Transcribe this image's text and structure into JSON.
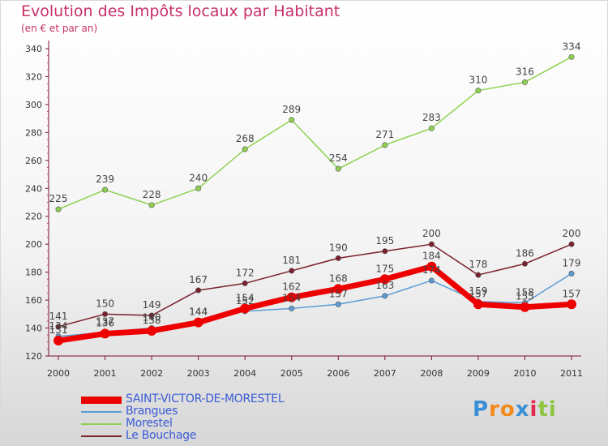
{
  "title": "Evolution des Impôts locaux par Habitant",
  "subtitle": "(en € et par an)",
  "chart_data": {
    "type": "line",
    "title": "Evolution des Impôts locaux par Habitant",
    "subtitle": "(en € et par an)",
    "xlabel": "",
    "ylabel": "",
    "x": [
      "2000",
      "2001",
      "2002",
      "2003",
      "2004",
      "2005",
      "2006",
      "2007",
      "2008",
      "2009",
      "2010",
      "2011"
    ],
    "ylim": [
      120,
      340
    ],
    "yticks": [
      120,
      140,
      160,
      180,
      200,
      220,
      240,
      260,
      280,
      300,
      320,
      340
    ],
    "grid": false,
    "legend_position": "bottom-left",
    "series": [
      {
        "name": "SAINT-VICTOR-DE-MORESTEL",
        "color": "#ee0000",
        "values": [
          131,
          136,
          138,
          144,
          154,
          162,
          168,
          175,
          184,
          157,
          155,
          157
        ]
      },
      {
        "name": "Brangues",
        "color": "#5b9bd5",
        "values": [
          134,
          137,
          140,
          144,
          152,
          154,
          157,
          163,
          174,
          159,
          158,
          179
        ]
      },
      {
        "name": "Morestel",
        "color": "#8fd14f",
        "values": [
          225,
          239,
          228,
          240,
          268,
          289,
          254,
          271,
          283,
          310,
          316,
          334
        ]
      },
      {
        "name": "Le Bouchage",
        "color": "#7a1f2b",
        "values": [
          141,
          150,
          149,
          167,
          172,
          181,
          190,
          195,
          200,
          178,
          186,
          200
        ]
      }
    ]
  },
  "logo": {
    "text": "Proxiti",
    "letters": [
      "P",
      "r",
      "o",
      "x",
      "i",
      "t",
      "i"
    ],
    "colors": [
      "#3a8fd6",
      "#f28a1a",
      "#f28a1a",
      "#3a8fd6",
      "#e52b50",
      "#8cc63f",
      "#8cc63f"
    ]
  }
}
